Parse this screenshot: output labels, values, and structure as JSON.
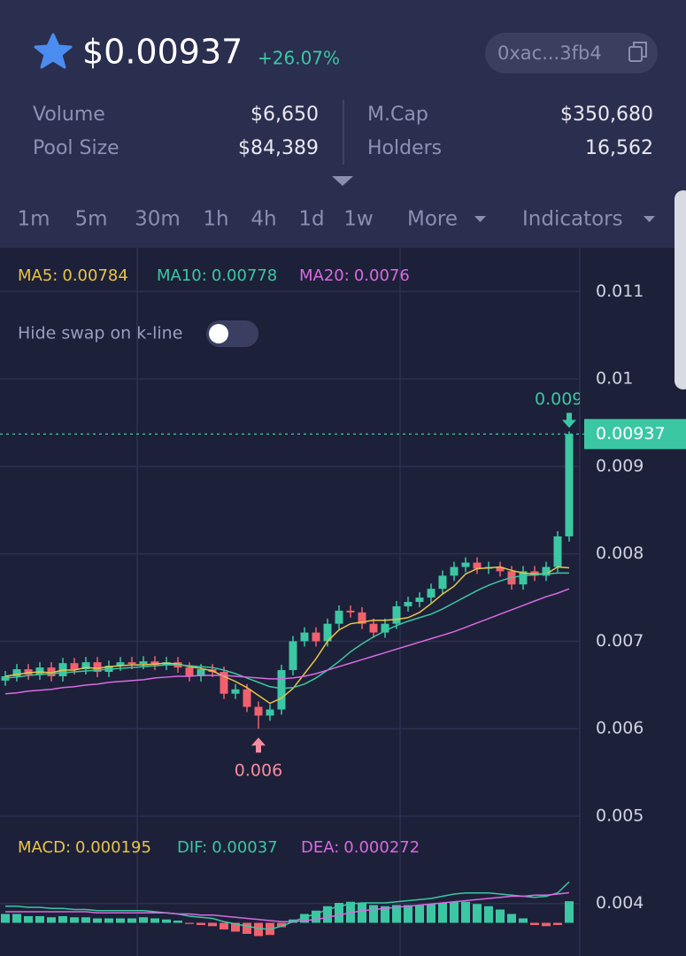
{
  "header": {
    "price": "$0.00937",
    "change": "+26.07%",
    "address": "0xac...3fb4",
    "stats": [
      {
        "label": "Volume",
        "value": "$6,650"
      },
      {
        "label": "Pool Size",
        "value": "$84,389"
      },
      {
        "label": "M.Cap",
        "value": "$350,680"
      },
      {
        "label": "Holders",
        "value": "16,562"
      }
    ]
  },
  "toolbar": {
    "timeframes": [
      "1m",
      "5m",
      "30m",
      "1h",
      "4h",
      "1d",
      "1w"
    ],
    "active_timeframe": "1h",
    "more": "More",
    "indicators": "Indicators"
  },
  "toggle": {
    "label": "Hide swap on k-line",
    "on": false
  },
  "chart_data": {
    "type": "candlestick",
    "up_color": "#3cc7a3",
    "down_color": "#f0616d",
    "ylim": [
      0.0034,
      0.0115
    ],
    "yticks": [
      0.004,
      0.005,
      0.006,
      0.007,
      0.008,
      0.009,
      0.01,
      0.011
    ],
    "grid": true,
    "open": [
      0.00655,
      0.0066,
      0.00668,
      0.00662,
      0.0067,
      0.0066,
      0.00675,
      0.00668,
      0.00676,
      0.00665,
      0.00672,
      0.00676,
      0.00674,
      0.00677,
      0.00673,
      0.00676,
      0.0067,
      0.0066,
      0.00668,
      0.00665,
      0.0064,
      0.00645,
      0.00625,
      0.00615,
      0.00622,
      0.00667,
      0.007,
      0.0071,
      0.007,
      0.0072,
      0.00735,
      0.00733,
      0.0072,
      0.0071,
      0.0072,
      0.0074,
      0.00745,
      0.0075,
      0.0076,
      0.00775,
      0.00785,
      0.0079,
      0.00783,
      0.00785,
      0.0078,
      0.00765,
      0.0078,
      0.00775,
      0.00785,
      0.0082
    ],
    "high": [
      0.00666,
      0.00674,
      0.00674,
      0.00676,
      0.00676,
      0.00681,
      0.00681,
      0.00682,
      0.00682,
      0.00678,
      0.00682,
      0.00682,
      0.00683,
      0.00683,
      0.00682,
      0.00682,
      0.00676,
      0.00674,
      0.00674,
      0.00671,
      0.00651,
      0.00651,
      0.00631,
      0.00628,
      0.00673,
      0.00706,
      0.00716,
      0.00716,
      0.00726,
      0.00741,
      0.00741,
      0.00739,
      0.00726,
      0.00726,
      0.00746,
      0.00751,
      0.00756,
      0.00766,
      0.00781,
      0.00791,
      0.00796,
      0.00796,
      0.00791,
      0.00791,
      0.00786,
      0.00786,
      0.00786,
      0.00791,
      0.00826,
      0.0094
    ],
    "low": [
      0.00649,
      0.00654,
      0.00656,
      0.00656,
      0.00654,
      0.00654,
      0.00662,
      0.00662,
      0.00659,
      0.00659,
      0.00666,
      0.00668,
      0.00668,
      0.00667,
      0.00667,
      0.00664,
      0.00654,
      0.00654,
      0.00659,
      0.00634,
      0.00634,
      0.00619,
      0.006,
      0.00609,
      0.00616,
      0.00661,
      0.00694,
      0.00694,
      0.00694,
      0.00714,
      0.00727,
      0.00714,
      0.00704,
      0.00704,
      0.00714,
      0.00734,
      0.00739,
      0.00744,
      0.00754,
      0.00769,
      0.00779,
      0.00777,
      0.00777,
      0.00774,
      0.00759,
      0.00759,
      0.00769,
      0.00769,
      0.00779,
      0.00814
    ],
    "close": [
      0.0066,
      0.00668,
      0.00662,
      0.0067,
      0.0066,
      0.00675,
      0.00668,
      0.00676,
      0.00665,
      0.00672,
      0.00676,
      0.00674,
      0.00677,
      0.00673,
      0.00676,
      0.0067,
      0.0066,
      0.00668,
      0.00665,
      0.0064,
      0.00645,
      0.00625,
      0.00615,
      0.00622,
      0.00667,
      0.007,
      0.0071,
      0.007,
      0.0072,
      0.00735,
      0.00733,
      0.0072,
      0.0071,
      0.0072,
      0.0074,
      0.00745,
      0.0075,
      0.0076,
      0.00775,
      0.00785,
      0.0079,
      0.00783,
      0.00785,
      0.0078,
      0.00765,
      0.0078,
      0.00775,
      0.00785,
      0.0082,
      0.00937
    ],
    "last_price": 0.00937,
    "low_marker": "0.006",
    "high_marker": "0.009",
    "moving_averages": [
      {
        "name": "MA5:",
        "value": 0.00784,
        "color": "#e8c547",
        "values": [
          0.0066,
          0.00662,
          0.00664,
          0.00665,
          0.00664,
          0.00667,
          0.00667,
          0.0067,
          0.00669,
          0.00671,
          0.00672,
          0.00673,
          0.00673,
          0.00674,
          0.00675,
          0.00674,
          0.00671,
          0.00669,
          0.00666,
          0.0066,
          0.00654,
          0.00647,
          0.00638,
          0.00629,
          0.00635,
          0.00646,
          0.00663,
          0.0068,
          0.007,
          0.00713,
          0.0072,
          0.00722,
          0.00724,
          0.00724,
          0.00725,
          0.00727,
          0.00733,
          0.00743,
          0.00754,
          0.00763,
          0.00777,
          0.00783,
          0.00784,
          0.00785,
          0.00781,
          0.00778,
          0.00777,
          0.00777,
          0.00785,
          0.00784
        ]
      },
      {
        "name": "MA10:",
        "value": 0.00778,
        "color": "#3cc7a3",
        "values": [
          0.00658,
          0.00659,
          0.00661,
          0.00662,
          0.00663,
          0.00664,
          0.00665,
          0.00666,
          0.00667,
          0.00668,
          0.00669,
          0.0067,
          0.00671,
          0.00672,
          0.00673,
          0.00673,
          0.00672,
          0.00671,
          0.0067,
          0.00667,
          0.00663,
          0.00658,
          0.00653,
          0.00648,
          0.00646,
          0.00647,
          0.00651,
          0.00658,
          0.00667,
          0.00677,
          0.00688,
          0.00697,
          0.00705,
          0.00712,
          0.00718,
          0.00723,
          0.00727,
          0.00731,
          0.00737,
          0.00744,
          0.00751,
          0.00758,
          0.00764,
          0.00769,
          0.00773,
          0.00775,
          0.00776,
          0.00777,
          0.00778,
          0.00778
        ]
      },
      {
        "name": "MA20:",
        "value": 0.0076,
        "color": "#d86be0",
        "values": [
          0.0064,
          0.00641,
          0.00643,
          0.00644,
          0.00645,
          0.00647,
          0.00648,
          0.0065,
          0.00651,
          0.00653,
          0.00654,
          0.00655,
          0.00656,
          0.00658,
          0.00659,
          0.0066,
          0.0066,
          0.00661,
          0.00661,
          0.00661,
          0.0066,
          0.00659,
          0.00658,
          0.00657,
          0.00657,
          0.00658,
          0.0066,
          0.00663,
          0.00667,
          0.00671,
          0.00675,
          0.00679,
          0.00683,
          0.00687,
          0.00691,
          0.00695,
          0.00699,
          0.00703,
          0.00707,
          0.00711,
          0.00716,
          0.00721,
          0.00726,
          0.00731,
          0.00736,
          0.00741,
          0.00746,
          0.00751,
          0.00755,
          0.0076
        ]
      }
    ],
    "macd": {
      "ylim": [
        -0.0003,
        0.0005
      ],
      "series": [
        {
          "name": "MACD:",
          "value": 0.000195,
          "color": "#e8c547",
          "values": [
            8e-05,
            8e-05,
            6e-05,
            6e-05,
            5e-05,
            6e-05,
            5e-05,
            5e-05,
            4e-05,
            4e-05,
            4e-05,
            4e-05,
            5e-05,
            4e-05,
            3e-05,
            2e-05,
            -1e-05,
            -2e-05,
            -3e-05,
            -6e-05,
            -8e-05,
            -0.0001,
            -0.00012,
            -0.00011,
            -4e-05,
            3e-05,
            8e-05,
            0.00011,
            0.00015,
            0.00018,
            0.00019,
            0.00018,
            0.00016,
            0.00015,
            0.00016,
            0.00016,
            0.00016,
            0.00017,
            0.00018,
            0.00019,
            0.00019,
            0.00017,
            0.00015,
            0.00012,
            8e-05,
            4e-05,
            -2e-05,
            -3e-05,
            -2e-05,
            0.000195
          ]
        },
        {
          "name": "DIF:",
          "value": 0.00037,
          "color": "#3cc7a3",
          "values": [
            0.00015,
            0.00015,
            0.00014,
            0.00014,
            0.00013,
            0.00013,
            0.00012,
            0.00012,
            0.00011,
            0.00011,
            0.00011,
            0.00011,
            0.00011,
            0.0001,
            9e-05,
            8e-05,
            6e-05,
            5e-05,
            4e-05,
            1e-05,
            -1e-05,
            -3e-05,
            -5e-05,
            -6e-05,
            -3e-05,
            1e-05,
            5e-05,
            8e-05,
            0.00012,
            0.00015,
            0.00017,
            0.00018,
            0.00018,
            0.00018,
            0.00019,
            0.0002,
            0.00021,
            0.00022,
            0.00024,
            0.00026,
            0.00027,
            0.00027,
            0.00027,
            0.00026,
            0.00025,
            0.00024,
            0.00023,
            0.00024,
            0.00027,
            0.00037
          ]
        },
        {
          "name": "DEA:",
          "value": 0.000272,
          "color": "#d86be0",
          "values": [
            0.0001,
            0.0001,
            0.0001,
            0.0001,
            0.0001,
            0.0001,
            0.0001,
            0.0001,
            9e-05,
            9e-05,
            9e-05,
            9e-05,
            9e-05,
            9e-05,
            9e-05,
            8e-05,
            8e-05,
            7e-05,
            7e-05,
            6e-05,
            5e-05,
            4e-05,
            3e-05,
            2e-05,
            1e-05,
            1e-05,
            2e-05,
            3e-05,
            5e-05,
            7e-05,
            9e-05,
            0.00011,
            0.00012,
            0.00013,
            0.00014,
            0.00015,
            0.00016,
            0.00017,
            0.00018,
            0.00019,
            0.0002,
            0.00021,
            0.00022,
            0.00023,
            0.00024,
            0.00024,
            0.00025,
            0.00025,
            0.00026,
            0.000272
          ]
        }
      ]
    }
  }
}
